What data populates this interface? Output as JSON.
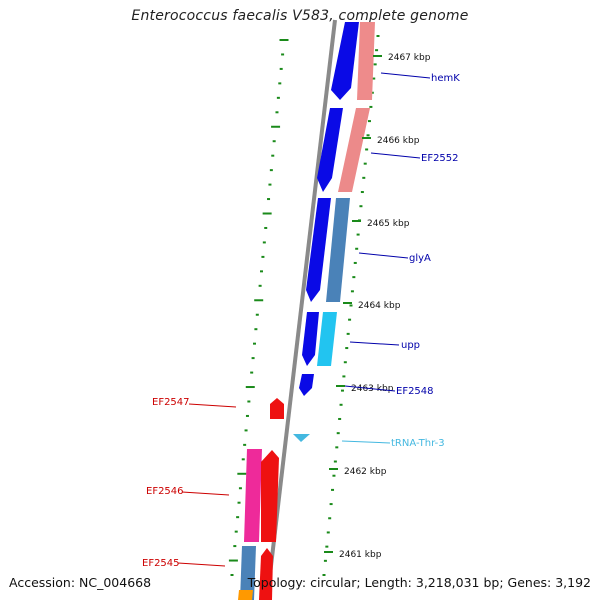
{
  "title": "Enterococcus faecalis V583, complete genome",
  "footer": {
    "accession": "Accession: NC_004668",
    "summary": "Topology: circular; Length: 3,218,031 bp; Genes: 3,192"
  },
  "colors": {
    "cds_forward": "#e98b8b",
    "cds_forward_dark": "#d46a6a",
    "cds_reverse": "#0000ee",
    "trna": "#44b8e0",
    "ruler_tick": "#1a8a1a",
    "backbone": "#888888",
    "label_forward": "#0000aa",
    "label_reverse": "#cc0000",
    "label_trna": "#44b8e0"
  },
  "ruler": [
    {
      "label": "2467 kbp"
    },
    {
      "label": "2466 kbp"
    },
    {
      "label": "2465 kbp"
    },
    {
      "label": "2464 kbp"
    },
    {
      "label": "2463 kbp"
    },
    {
      "label": "2462 kbp"
    },
    {
      "label": "2461 kbp"
    }
  ],
  "gene_labels": {
    "hemK": "hemK",
    "EF2552": "EF2552",
    "glyA": "glyA",
    "upp": "upp",
    "EF2548": "EF2548",
    "trna": "tRNA-Thr-3",
    "EF2547": "EF2547",
    "EF2546": "EF2546",
    "EF2545": "EF2545"
  }
}
